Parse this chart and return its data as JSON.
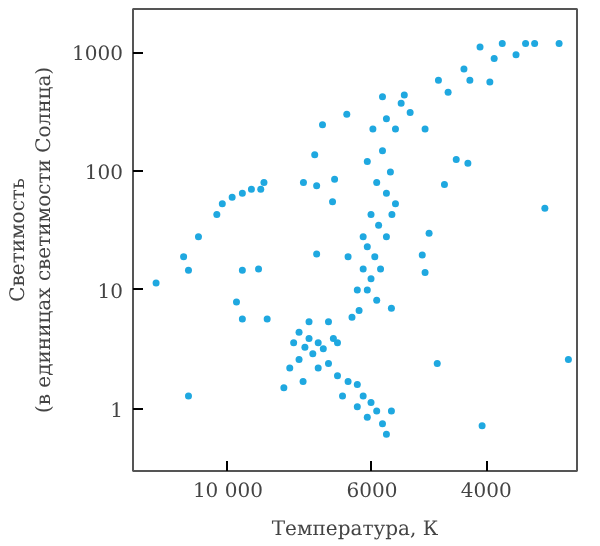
{
  "chart_data": {
    "type": "scatter",
    "xlabel": "Температура, К",
    "ylabel": "Светимость\n(в единицах светимости Солнца)",
    "log": "xy",
    "grid": false,
    "marker": "circle",
    "xlim": [
      14000,
      2900
    ],
    "xticks": [
      {
        "value": 10000,
        "label": "10 000"
      },
      6000,
      4000
    ],
    "ylim": [
      0.3,
      2300
    ],
    "yticks": [
      1,
      10,
      100,
      1000
    ],
    "series": [
      {
        "color": "#1fa8e0",
        "x": [
          12900,
          11700,
          11500,
          11100,
          10400,
          10200,
          9850,
          9500,
          9200,
          8900,
          8800,
          7650,
          7300,
          6850,
          7150,
          6560,
          7350,
          6900,
          5350,
          4970,
          4640,
          4450,
          4270,
          3250,
          4740,
          4330,
          4090,
          3890,
          3780,
          3600,
          3480,
          3370,
          3090,
          3950,
          4240,
          4580,
          2990,
          4060,
          4760,
          5600,
          9700,
          9500,
          8700,
          5600,
          11500,
          8200,
          4900,
          5020,
          4970,
          7300,
          9500,
          8970,
          5980,
          5700,
          5520,
          5780,
          5620,
          5900,
          5700,
          5520,
          6020,
          5860,
          5700,
          6100,
          5940,
          6190,
          6020,
          6320,
          6100,
          5900,
          6280,
          6440,
          6190,
          5780,
          5410,
          5240,
          6100,
          5590,
          5820,
          6530,
          7770,
          7500,
          7260,
          7610,
          7400,
          7130,
          7000,
          7770,
          7920,
          6880,
          8030,
          6780,
          6530,
          6320,
          6190,
          6020,
          5900,
          6100,
          5780,
          5700,
          6320,
          6660,
          7260,
          7500,
          7000,
          7660,
          6780
        ],
        "values": [
          11.4,
          19,
          14.6,
          28,
          43,
          53,
          60,
          65,
          70,
          70,
          80,
          80,
          75,
          85,
          245,
          300,
          137,
          55,
          435,
          225,
          77,
          125,
          116,
          48.6,
          580,
          720,
          1100,
          880,
          1180,
          950,
          1180,
          1180,
          1180,
          560,
          580,
          460,
          2.6,
          0.72,
          2.4,
          0.96,
          7.9,
          5.7,
          5.7,
          7,
          1.28,
          1.5,
          30,
          19.6,
          14,
          20,
          14.6,
          15,
          225,
          275,
          225,
          148,
          98,
          80,
          65,
          53,
          43,
          35,
          28,
          23,
          19,
          15,
          12.4,
          10,
          10,
          8.2,
          6.7,
          5.9,
          28,
          420,
          370,
          310,
          120,
          43,
          15,
          19,
          4.4,
          3.9,
          3.6,
          3.3,
          2.9,
          3.2,
          2.4,
          2.6,
          3.6,
          3.9,
          2.2,
          1.9,
          1.7,
          1.6,
          1.28,
          1.13,
          0.96,
          0.85,
          0.75,
          0.61,
          1.04,
          1.28,
          2.2,
          5.4,
          5.4,
          1.7,
          3.6
        ]
      }
    ]
  }
}
